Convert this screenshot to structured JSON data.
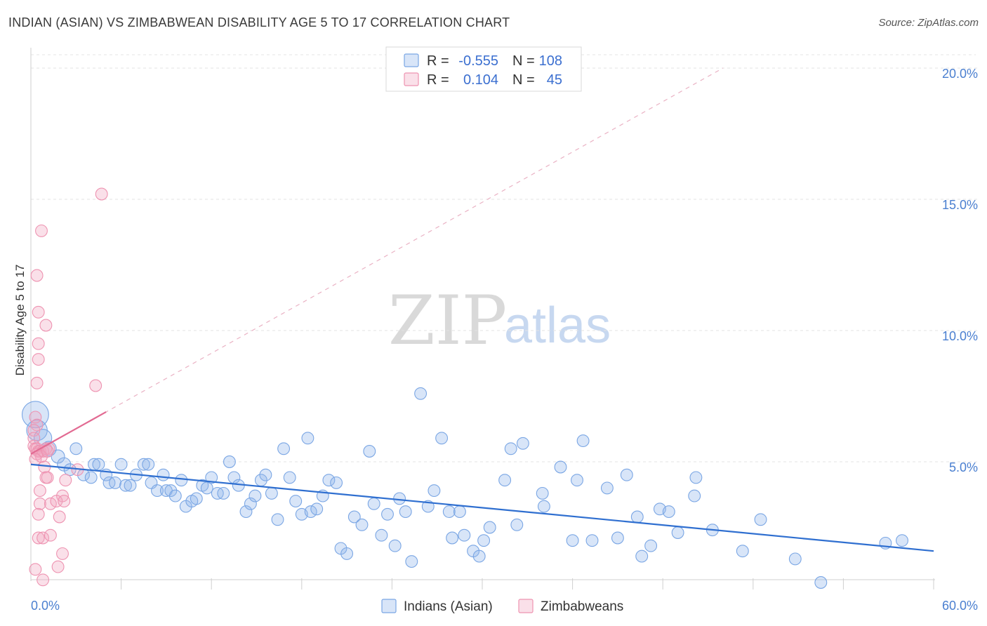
{
  "header": {
    "title": "INDIAN (ASIAN) VS ZIMBABWEAN DISABILITY AGE 5 TO 17 CORRELATION CHART",
    "source": "Source: ZipAtlas.com"
  },
  "watermark": {
    "zip": "ZIP",
    "atlas": "atlas"
  },
  "legend": {
    "rows": [
      {
        "r_label": "R =",
        "r_value": "-0.555",
        "n_label": "N =",
        "n_value": "108",
        "color": "#8fb5ea"
      },
      {
        "r_label": "R =",
        "r_value": "0.104",
        "n_label": "N =",
        "n_value": "45",
        "color": "#f2a7bf"
      }
    ]
  },
  "bottom_legend": {
    "items": [
      {
        "label": "Indians (Asian)",
        "color": "#8fb5ea"
      },
      {
        "label": "Zimbabweans",
        "color": "#f2a7bf"
      }
    ]
  },
  "chart_data": {
    "type": "scatter",
    "title": "INDIAN (ASIAN) VS ZIMBABWEAN DISABILITY AGE 5 TO 17 CORRELATION CHART",
    "xlabel": "",
    "ylabel": "Disability Age 5 to 17",
    "xlim": [
      0,
      60
    ],
    "ylim": [
      0,
      20
    ],
    "x_tick_labels": [
      "0.0%",
      "60.0%"
    ],
    "y_ticks": [
      {
        "value": 5,
        "label": "5.0%"
      },
      {
        "value": 10,
        "label": "10.0%"
      },
      {
        "value": 15,
        "label": "15.0%"
      },
      {
        "value": 20,
        "label": "20.0%"
      }
    ],
    "grid": true,
    "legend_position": "top-center",
    "series": [
      {
        "name": "Indians (Asian)",
        "color": "#8fb5ea",
        "line_color": "#2f6fd0",
        "trend": {
          "x": [
            0,
            60
          ],
          "y": [
            4.9,
            1.6
          ]
        },
        "points": [
          [
            0.3,
            6.8,
            18
          ],
          [
            0.4,
            6.2,
            14
          ],
          [
            0.8,
            5.9,
            12
          ],
          [
            1.2,
            5.5,
            10
          ],
          [
            1.8,
            5.2,
            9
          ],
          [
            2.2,
            4.9,
            9
          ],
          [
            2.6,
            4.7,
            8
          ],
          [
            3.0,
            5.5,
            8
          ],
          [
            3.5,
            4.5,
            8
          ],
          [
            4.0,
            4.4,
            8
          ],
          [
            4.2,
            4.9,
            8
          ],
          [
            4.5,
            4.9,
            8
          ],
          [
            5.0,
            4.5,
            8
          ],
          [
            5.2,
            4.2,
            8
          ],
          [
            5.6,
            4.2,
            8
          ],
          [
            6.0,
            4.9,
            8
          ],
          [
            6.3,
            4.1,
            8
          ],
          [
            6.6,
            4.1,
            8
          ],
          [
            7.0,
            4.5,
            8
          ],
          [
            7.5,
            4.9,
            8
          ],
          [
            7.8,
            4.9,
            8
          ],
          [
            8.0,
            4.2,
            8
          ],
          [
            8.4,
            3.9,
            8
          ],
          [
            8.8,
            4.5,
            8
          ],
          [
            9.0,
            3.9,
            8
          ],
          [
            9.3,
            3.9,
            8
          ],
          [
            9.6,
            3.7,
            8
          ],
          [
            10.0,
            4.3,
            8
          ],
          [
            10.3,
            3.3,
            8
          ],
          [
            10.7,
            3.5,
            8
          ],
          [
            11.0,
            3.6,
            8
          ],
          [
            11.4,
            4.1,
            8
          ],
          [
            11.7,
            4.0,
            8
          ],
          [
            12.0,
            4.4,
            8
          ],
          [
            12.4,
            3.8,
            8
          ],
          [
            12.8,
            3.8,
            8
          ],
          [
            13.2,
            5.0,
            8
          ],
          [
            13.5,
            4.4,
            8
          ],
          [
            13.8,
            4.1,
            8
          ],
          [
            14.3,
            3.1,
            8
          ],
          [
            14.6,
            3.4,
            8
          ],
          [
            14.9,
            3.7,
            8
          ],
          [
            15.3,
            4.3,
            8
          ],
          [
            15.6,
            4.5,
            8
          ],
          [
            16.0,
            3.8,
            8
          ],
          [
            16.4,
            2.8,
            8
          ],
          [
            16.8,
            5.5,
            8
          ],
          [
            17.2,
            4.4,
            8
          ],
          [
            17.6,
            3.5,
            8
          ],
          [
            18.0,
            3.0,
            8
          ],
          [
            18.4,
            5.9,
            8
          ],
          [
            18.6,
            3.1,
            8
          ],
          [
            19.0,
            3.2,
            8
          ],
          [
            19.4,
            3.7,
            8
          ],
          [
            19.8,
            4.3,
            8
          ],
          [
            20.3,
            4.2,
            8
          ],
          [
            20.6,
            1.7,
            8
          ],
          [
            21.0,
            1.5,
            8
          ],
          [
            21.5,
            2.9,
            8
          ],
          [
            22.0,
            2.6,
            8
          ],
          [
            22.5,
            5.4,
            8
          ],
          [
            22.8,
            3.4,
            8
          ],
          [
            23.3,
            2.2,
            8
          ],
          [
            23.7,
            3.0,
            8
          ],
          [
            24.2,
            1.8,
            8
          ],
          [
            24.5,
            3.6,
            8
          ],
          [
            24.9,
            3.1,
            8
          ],
          [
            25.3,
            1.2,
            8
          ],
          [
            25.9,
            7.6,
            8
          ],
          [
            26.4,
            3.3,
            8
          ],
          [
            26.8,
            3.9,
            8
          ],
          [
            27.3,
            5.9,
            8
          ],
          [
            27.8,
            3.1,
            8
          ],
          [
            28.0,
            2.1,
            8
          ],
          [
            28.5,
            3.1,
            8
          ],
          [
            28.8,
            2.2,
            8
          ],
          [
            29.4,
            1.6,
            8
          ],
          [
            29.8,
            1.4,
            8
          ],
          [
            30.1,
            2.0,
            8
          ],
          [
            30.5,
            2.5,
            8
          ],
          [
            31.5,
            4.3,
            8
          ],
          [
            31.9,
            5.5,
            8
          ],
          [
            32.3,
            2.6,
            8
          ],
          [
            32.7,
            5.7,
            8
          ],
          [
            34.0,
            3.8,
            8
          ],
          [
            34.1,
            3.3,
            8
          ],
          [
            35.2,
            4.8,
            8
          ],
          [
            36.0,
            2.0,
            8
          ],
          [
            36.3,
            4.3,
            8
          ],
          [
            36.7,
            5.8,
            8
          ],
          [
            37.3,
            2.0,
            8
          ],
          [
            38.3,
            4.0,
            8
          ],
          [
            39.0,
            2.1,
            8
          ],
          [
            39.6,
            4.5,
            8
          ],
          [
            40.3,
            2.9,
            8
          ],
          [
            40.6,
            1.4,
            8
          ],
          [
            41.2,
            1.8,
            8
          ],
          [
            41.8,
            3.2,
            8
          ],
          [
            42.4,
            3.1,
            8
          ],
          [
            43.0,
            2.3,
            8
          ],
          [
            44.1,
            3.7,
            8
          ],
          [
            44.2,
            4.4,
            8
          ],
          [
            45.3,
            2.4,
            8
          ],
          [
            47.3,
            1.6,
            8
          ],
          [
            48.5,
            2.8,
            8
          ],
          [
            50.8,
            1.3,
            8
          ],
          [
            52.5,
            0.4,
            8
          ],
          [
            56.8,
            1.9,
            8
          ],
          [
            57.9,
            2.0,
            8
          ]
        ]
      },
      {
        "name": "Zimbabweans",
        "color": "#f2a7bf",
        "line_color": "#e26a92",
        "trend": {
          "x": [
            0,
            5
          ],
          "y": [
            5.3,
            6.9
          ]
        },
        "trend_extended": {
          "x": [
            0,
            46
          ],
          "y": [
            5.3,
            20.0
          ]
        },
        "points": [
          [
            4.7,
            15.2,
            8
          ],
          [
            0.7,
            13.8,
            8
          ],
          [
            0.4,
            12.1,
            8
          ],
          [
            0.5,
            10.7,
            8
          ],
          [
            1.0,
            10.2,
            8
          ],
          [
            0.5,
            9.5,
            8
          ],
          [
            0.5,
            8.9,
            8
          ],
          [
            0.4,
            8.0,
            8
          ],
          [
            4.3,
            7.9,
            8
          ],
          [
            0.3,
            6.7,
            8
          ],
          [
            0.4,
            6.4,
            8
          ],
          [
            0.2,
            6.2,
            8
          ],
          [
            0.2,
            5.9,
            8
          ],
          [
            0.2,
            5.6,
            8
          ],
          [
            0.3,
            5.5,
            8
          ],
          [
            0.4,
            5.5,
            8
          ],
          [
            0.5,
            5.4,
            8
          ],
          [
            0.6,
            5.4,
            8
          ],
          [
            0.8,
            5.4,
            8
          ],
          [
            1.0,
            5.5,
            8
          ],
          [
            1.2,
            5.5,
            8
          ],
          [
            0.4,
            5.3,
            8
          ],
          [
            0.7,
            5.2,
            8
          ],
          [
            1.1,
            5.4,
            8
          ],
          [
            0.3,
            5.1,
            8
          ],
          [
            0.9,
            4.8,
            8
          ],
          [
            3.1,
            4.7,
            8
          ],
          [
            1.0,
            4.4,
            8
          ],
          [
            1.1,
            4.4,
            8
          ],
          [
            2.3,
            4.3,
            8
          ],
          [
            0.6,
            3.9,
            8
          ],
          [
            2.1,
            3.7,
            8
          ],
          [
            0.6,
            3.4,
            8
          ],
          [
            1.3,
            3.4,
            8
          ],
          [
            1.7,
            3.5,
            8
          ],
          [
            2.2,
            3.5,
            8
          ],
          [
            0.5,
            3.0,
            8
          ],
          [
            1.9,
            2.9,
            8
          ],
          [
            0.5,
            2.1,
            8
          ],
          [
            0.8,
            2.1,
            8
          ],
          [
            1.3,
            2.2,
            8
          ],
          [
            2.1,
            1.5,
            8
          ],
          [
            1.8,
            1.0,
            8
          ],
          [
            0.8,
            0.5,
            8
          ],
          [
            0.3,
            0.9,
            8
          ]
        ]
      }
    ]
  }
}
